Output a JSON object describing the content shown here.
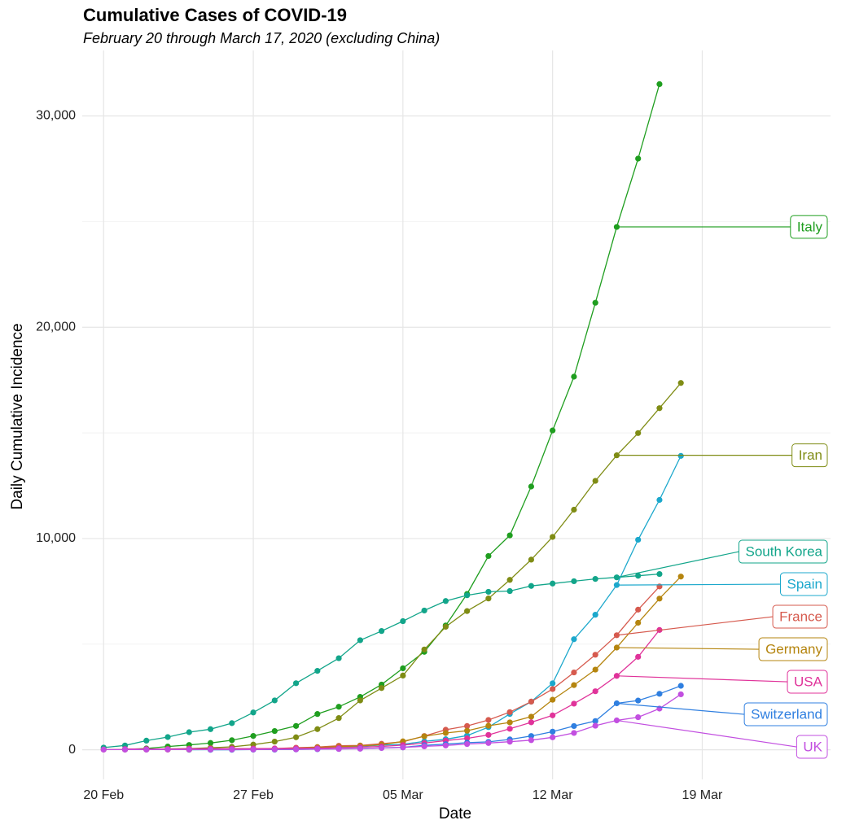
{
  "chart_data": {
    "type": "line",
    "title": "Cumulative Cases of COVID-19",
    "subtitle": "February 20 through March 17, 2020 (excluding China)",
    "x_label": "Date",
    "y_label": "Daily Cumulative Incidence",
    "x": [
      "02-20",
      "02-21",
      "02-22",
      "02-23",
      "02-24",
      "02-25",
      "02-26",
      "02-27",
      "02-28",
      "02-29",
      "03-01",
      "03-02",
      "03-03",
      "03-04",
      "03-05",
      "03-06",
      "03-07",
      "03-08",
      "03-09",
      "03-10",
      "03-11",
      "03-12",
      "03-13",
      "03-14",
      "03-15",
      "03-16",
      "03-17",
      "03-18"
    ],
    "xlim": [
      "02-19",
      "03-25"
    ],
    "xticks": [
      {
        "value": "02-20",
        "label": "20 Feb"
      },
      {
        "value": "02-27",
        "label": "27 Feb"
      },
      {
        "value": "03-05",
        "label": "05 Mar"
      },
      {
        "value": "03-12",
        "label": "12 Mar"
      },
      {
        "value": "03-19",
        "label": "19 Mar"
      }
    ],
    "ylim": [
      -1400,
      33100
    ],
    "yticks": [
      0,
      {
        "value": 10000,
        "label": "10,000"
      },
      {
        "value": 20000,
        "label": "20,000"
      },
      {
        "value": 30000,
        "label": "30,000"
      }
    ],
    "minor_yticks": [
      5000,
      15000,
      25000
    ],
    "grid": true,
    "label_at": "03-15",
    "series": [
      {
        "name": "Italy",
        "color": "#1f9e1f",
        "values": [
          null,
          20,
          62,
          155,
          229,
          322,
          453,
          655,
          888,
          1128,
          1694,
          2036,
          2502,
          3089,
          3858,
          4636,
          5883,
          7375,
          9172,
          10149,
          12462,
          15113,
          17660,
          21157,
          24747,
          27980,
          31506,
          null
        ]
      },
      {
        "name": "Iran",
        "color": "#7f8c14",
        "values": [
          null,
          18,
          28,
          43,
          61,
          95,
          139,
          245,
          388,
          593,
          978,
          1501,
          2336,
          2922,
          3513,
          4747,
          5823,
          6566,
          7161,
          8042,
          9000,
          10075,
          11364,
          12729,
          13938,
          14991,
          16169,
          17361
        ]
      },
      {
        "name": "South Korea",
        "color": "#12a58a",
        "values": [
          104,
          204,
          433,
          602,
          833,
          977,
          1261,
          1766,
          2337,
          3150,
          3736,
          4335,
          5186,
          5621,
          6088,
          6593,
          7041,
          7314,
          7478,
          7513,
          7755,
          7869,
          7979,
          8086,
          8162,
          8236,
          8320,
          null
        ]
      },
      {
        "name": "Spain",
        "color": "#1ca8cc",
        "values": [
          null,
          null,
          null,
          null,
          2,
          6,
          13,
          15,
          32,
          45,
          84,
          120,
          165,
          222,
          259,
          400,
          500,
          673,
          1073,
          1695,
          2277,
          3146,
          5232,
          6391,
          7798,
          9942,
          11826,
          13910
        ]
      },
      {
        "name": "France",
        "color": "#d65a4e",
        "values": [
          12,
          12,
          12,
          12,
          12,
          12,
          18,
          38,
          57,
          100,
          130,
          191,
          204,
          285,
          377,
          653,
          949,
          1126,
          1412,
          1784,
          2281,
          2876,
          3661,
          4499,
          5423,
          6633,
          7730,
          null
        ]
      },
      {
        "name": "Germany",
        "color": "#b5850f",
        "values": [
          null,
          null,
          16,
          16,
          16,
          16,
          21,
          26,
          53,
          66,
          117,
          150,
          188,
          240,
          400,
          639,
          795,
          902,
          1139,
          1296,
          1567,
          2369,
          3062,
          3795,
          4838,
          6012,
          7156,
          8198
        ]
      },
      {
        "name": "USA",
        "color": "#e0339a",
        "values": [
          null,
          35,
          35,
          35,
          53,
          53,
          59,
          60,
          62,
          68,
          75,
          100,
          124,
          158,
          221,
          319,
          435,
          541,
          704,
          994,
          1301,
          1630,
          2183,
          2770,
          3499,
          4400,
          5670,
          null
        ]
      },
      {
        "name": "Switzerland",
        "color": "#2f7fe0",
        "values": [
          null,
          null,
          null,
          null,
          null,
          1,
          1,
          8,
          8,
          18,
          27,
          42,
          56,
          90,
          114,
          214,
          268,
          337,
          374,
          491,
          652,
          858,
          1125,
          1359,
          2200,
          2330,
          2650,
          3028
        ]
      },
      {
        "name": "UK",
        "color": "#c24fe0",
        "values": [
          9,
          9,
          9,
          13,
          13,
          13,
          15,
          15,
          20,
          23,
          36,
          40,
          51,
          85,
          115,
          163,
          206,
          273,
          321,
          382,
          456,
          590,
          798,
          1140,
          1391,
          1543,
          1950,
          2626
        ]
      }
    ]
  }
}
